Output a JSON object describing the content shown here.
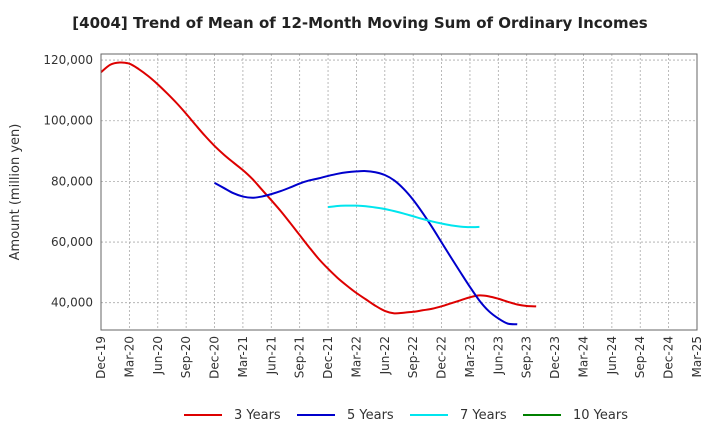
{
  "chart_data": {
    "type": "line",
    "title": "[4004]  Trend of Mean of 12-Month Moving Sum of Ordinary Incomes",
    "xlabel": "",
    "ylabel": "Amount (million yen)",
    "x_ticks": [
      "Dec-19",
      "Mar-20",
      "Jun-20",
      "Sep-20",
      "Dec-20",
      "Mar-21",
      "Jun-21",
      "Sep-21",
      "Dec-21",
      "Mar-22",
      "Jun-22",
      "Sep-22",
      "Dec-22",
      "Mar-23",
      "Jun-23",
      "Sep-23",
      "Dec-23",
      "Mar-24",
      "Jun-24",
      "Sep-24",
      "Dec-24",
      "Mar-25"
    ],
    "y_ticks": [
      40000,
      60000,
      80000,
      100000,
      120000
    ],
    "y_tick_labels": [
      "40,000",
      "60,000",
      "80,000",
      "100,000",
      "120,000"
    ],
    "ylim": [
      31000,
      122000
    ],
    "grid": true,
    "legend_position": "bottom",
    "series": [
      {
        "name": "3 Years",
        "color": "#dd0000",
        "values": [
          [
            0,
            116000
          ],
          [
            1,
            118500
          ],
          [
            2,
            119200
          ],
          [
            3,
            118800
          ],
          [
            4,
            117000
          ],
          [
            5,
            114700
          ],
          [
            6,
            112000
          ],
          [
            7,
            109000
          ],
          [
            8,
            105800
          ],
          [
            9,
            102300
          ],
          [
            10,
            98600
          ],
          [
            11,
            95000
          ],
          [
            12,
            91700
          ],
          [
            13,
            88800
          ],
          [
            14,
            86200
          ],
          [
            15,
            83700
          ],
          [
            16,
            80800
          ],
          [
            17,
            77300
          ],
          [
            18,
            73800
          ],
          [
            19,
            70200
          ],
          [
            20,
            66300
          ],
          [
            21,
            62300
          ],
          [
            22,
            58300
          ],
          [
            23,
            54500
          ],
          [
            24,
            51200
          ],
          [
            25,
            48200
          ],
          [
            26,
            45600
          ],
          [
            27,
            43200
          ],
          [
            28,
            41100
          ],
          [
            29,
            39000
          ],
          [
            30,
            37300
          ],
          [
            31,
            36500
          ],
          [
            32,
            36700
          ],
          [
            33,
            37000
          ],
          [
            34,
            37500
          ],
          [
            35,
            38000
          ],
          [
            36,
            38800
          ],
          [
            37,
            39800
          ],
          [
            38,
            40800
          ],
          [
            39,
            41800
          ],
          [
            40,
            42400
          ],
          [
            41,
            42100
          ],
          [
            42,
            41300
          ],
          [
            43,
            40300
          ],
          [
            44,
            39400
          ],
          [
            45,
            38900
          ],
          [
            46,
            38800
          ]
        ]
      },
      {
        "name": "5 Years",
        "color": "#0000cc",
        "values": [
          [
            12,
            79500
          ],
          [
            13,
            77800
          ],
          [
            14,
            76100
          ],
          [
            15,
            75000
          ],
          [
            16,
            74600
          ],
          [
            17,
            75000
          ],
          [
            18,
            75800
          ],
          [
            19,
            76800
          ],
          [
            20,
            78000
          ],
          [
            21,
            79300
          ],
          [
            22,
            80300
          ],
          [
            23,
            81000
          ],
          [
            24,
            81800
          ],
          [
            25,
            82500
          ],
          [
            26,
            83000
          ],
          [
            27,
            83300
          ],
          [
            28,
            83400
          ],
          [
            29,
            83000
          ],
          [
            30,
            82100
          ],
          [
            31,
            80300
          ],
          [
            32,
            77500
          ],
          [
            33,
            73900
          ],
          [
            34,
            69600
          ],
          [
            35,
            64900
          ],
          [
            36,
            59900
          ],
          [
            37,
            54900
          ],
          [
            38,
            50000
          ],
          [
            39,
            45200
          ],
          [
            40,
            40700
          ],
          [
            41,
            37200
          ],
          [
            42,
            34800
          ],
          [
            43,
            33100
          ],
          [
            44,
            32900
          ]
        ]
      },
      {
        "name": "7 Years",
        "color": "#00e5ee",
        "values": [
          [
            24,
            71500
          ],
          [
            25,
            71900
          ],
          [
            26,
            72000
          ],
          [
            27,
            72000
          ],
          [
            28,
            71800
          ],
          [
            29,
            71400
          ],
          [
            30,
            70900
          ],
          [
            31,
            70200
          ],
          [
            32,
            69400
          ],
          [
            33,
            68500
          ],
          [
            34,
            67600
          ],
          [
            35,
            66800
          ],
          [
            36,
            66100
          ],
          [
            37,
            65500
          ],
          [
            38,
            65100
          ],
          [
            39,
            64900
          ],
          [
            40,
            65000
          ]
        ]
      },
      {
        "name": "10 Years",
        "color": "#008000",
        "values": []
      }
    ]
  }
}
